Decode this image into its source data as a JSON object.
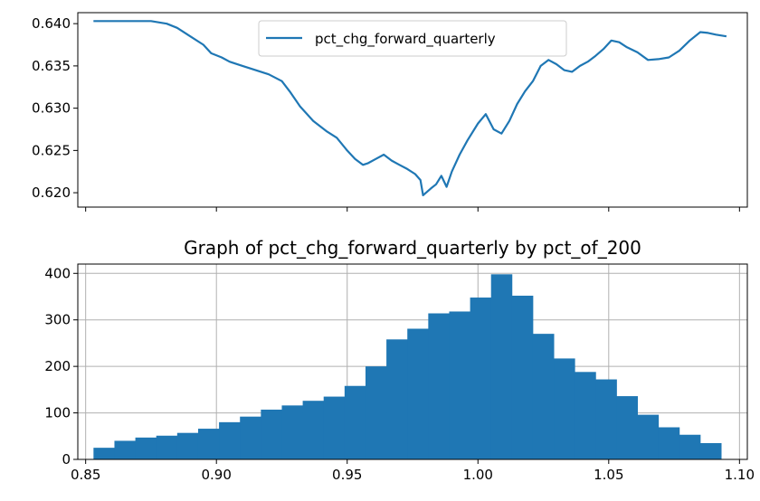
{
  "colors": {
    "series": "#1f77b4",
    "grid": "#b0b0b0",
    "axis": "#000000",
    "legend_border": "#cccccc"
  },
  "chart_data": [
    {
      "type": "line",
      "title": "",
      "xlabel": "",
      "ylabel": "",
      "ylim": [
        0.6183,
        0.6413
      ],
      "xlim": [
        0.847,
        1.103
      ],
      "xticks": [
        0.85,
        0.9,
        0.95,
        1.0,
        1.05,
        1.1
      ],
      "xtick_labels_visible": false,
      "yticks": [
        0.62,
        0.625,
        0.63,
        0.635,
        0.64
      ],
      "ytick_labels": [
        "0.620",
        "0.625",
        "0.630",
        "0.635",
        "0.640"
      ],
      "legend": {
        "position": "top-center",
        "entries": [
          "pct_chg_forward_quarterly"
        ]
      },
      "grid": false,
      "series": [
        {
          "name": "pct_chg_forward_quarterly",
          "x": [
            0.853,
            0.875,
            0.881,
            0.885,
            0.89,
            0.895,
            0.898,
            0.902,
            0.905,
            0.91,
            0.915,
            0.92,
            0.925,
            0.928,
            0.932,
            0.937,
            0.942,
            0.946,
            0.95,
            0.953,
            0.956,
            0.958,
            0.961,
            0.964,
            0.967,
            0.97,
            0.973,
            0.976,
            0.978,
            0.979,
            0.982,
            0.984,
            0.986,
            0.988,
            0.99,
            0.993,
            0.996,
            1.0,
            1.003,
            1.006,
            1.009,
            1.012,
            1.015,
            1.018,
            1.021,
            1.024,
            1.027,
            1.03,
            1.033,
            1.036,
            1.039,
            1.042,
            1.045,
            1.048,
            1.051,
            1.054,
            1.057,
            1.061,
            1.065,
            1.069,
            1.073,
            1.077,
            1.081,
            1.085,
            1.088,
            1.091,
            1.095
          ],
          "y": [
            0.6403,
            0.6403,
            0.64,
            0.6395,
            0.6385,
            0.6375,
            0.6365,
            0.636,
            0.6355,
            0.635,
            0.6345,
            0.634,
            0.6332,
            0.632,
            0.6302,
            0.6285,
            0.6273,
            0.6265,
            0.625,
            0.624,
            0.6233,
            0.6235,
            0.624,
            0.6245,
            0.6238,
            0.6233,
            0.6228,
            0.6222,
            0.6215,
            0.6197,
            0.6205,
            0.621,
            0.622,
            0.6207,
            0.6225,
            0.6245,
            0.6262,
            0.6282,
            0.6293,
            0.6275,
            0.627,
            0.6285,
            0.6305,
            0.632,
            0.6332,
            0.635,
            0.6357,
            0.6352,
            0.6345,
            0.6343,
            0.635,
            0.6355,
            0.6362,
            0.637,
            0.638,
            0.6378,
            0.6372,
            0.6366,
            0.6357,
            0.6358,
            0.636,
            0.6368,
            0.638,
            0.639,
            0.6389,
            0.6387,
            0.6385
          ]
        }
      ]
    },
    {
      "type": "bar",
      "title": "Graph of pct_chg_forward_quarterly by pct_of_200",
      "xlabel": "",
      "ylabel": "",
      "xlim": [
        0.847,
        1.103
      ],
      "ylim": [
        0,
        420
      ],
      "xticks": [
        0.85,
        0.9,
        0.95,
        1.0,
        1.05,
        1.1
      ],
      "xtick_labels": [
        "0.85",
        "0.90",
        "0.95",
        "1.00",
        "1.05",
        "1.10"
      ],
      "yticks": [
        0,
        100,
        200,
        300,
        400
      ],
      "ytick_labels": [
        "0",
        "100",
        "200",
        "300",
        "400"
      ],
      "grid": true,
      "bin_edges": [
        0.853,
        0.861,
        0.869,
        0.877,
        0.885,
        0.893,
        0.901,
        0.909,
        0.917,
        0.925,
        0.933,
        0.941,
        0.949,
        0.957,
        0.965,
        0.973,
        0.981,
        0.989,
        0.997,
        1.005,
        1.013,
        1.021,
        1.029,
        1.037,
        1.045,
        1.053,
        1.061,
        1.069,
        1.077,
        1.085,
        1.093
      ],
      "values": [
        25,
        40,
        47,
        51,
        57,
        66,
        80,
        92,
        107,
        116,
        126,
        135,
        158,
        200,
        258,
        281,
        314,
        318,
        348,
        398,
        352,
        270,
        217,
        188,
        172,
        136,
        96,
        69,
        53,
        35
      ]
    }
  ]
}
